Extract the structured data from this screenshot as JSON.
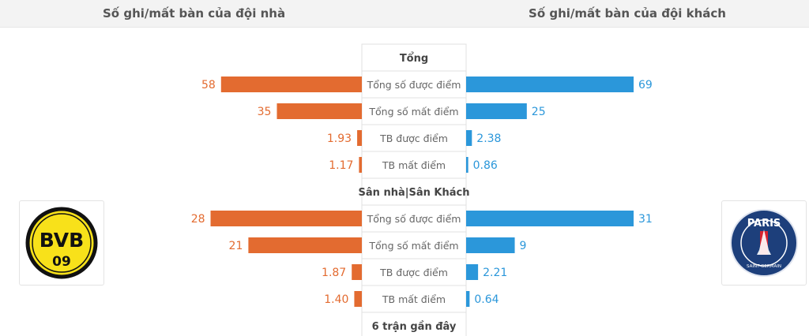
{
  "header": {
    "home_title": "Số ghi/mất bàn của đội nhà",
    "away_title": "Số ghi/mất bàn của đội khách"
  },
  "colors": {
    "home": "#e36b30",
    "away": "#2b97da",
    "label": "#555555"
  },
  "teams": {
    "home": {
      "logo": "bvb-crest-icon",
      "logo_text": "BVB",
      "logo_number": "09"
    },
    "away": {
      "logo": "psg-crest-icon",
      "logo_text": "PARIS",
      "logo_subtext": "SAINT-GERMAIN"
    }
  },
  "chart_data": {
    "type": "bar",
    "orientation": "horizontal-diverging",
    "series": [
      {
        "side": "home",
        "color": "#e36b30"
      },
      {
        "side": "away",
        "color": "#2b97da"
      }
    ],
    "sections": [
      {
        "title": "Tổng",
        "rows": [
          {
            "label": "Tổng số được điểm",
            "home": 58,
            "away": 69,
            "home_label": "58",
            "away_label": "69"
          },
          {
            "label": "Tổng số mất điểm",
            "home": 35,
            "away": 25,
            "home_label": "35",
            "away_label": "25"
          },
          {
            "label": "TB được điểm",
            "home": 1.93,
            "away": 2.38,
            "home_label": "1.93",
            "away_label": "2.38"
          },
          {
            "label": "TB mất điểm",
            "home": 1.17,
            "away": 0.86,
            "home_label": "1.17",
            "away_label": "0.86"
          }
        ]
      },
      {
        "title": "Sân nhà|Sân Khách",
        "rows": [
          {
            "label": "Tổng số được điểm",
            "home": 28,
            "away": 31,
            "home_label": "28",
            "away_label": "31"
          },
          {
            "label": "Tổng số mất điểm",
            "home": 21,
            "away": 9,
            "home_label": "21",
            "away_label": "9"
          },
          {
            "label": "TB được điểm",
            "home": 1.87,
            "away": 2.21,
            "home_label": "1.87",
            "away_label": "2.21"
          },
          {
            "label": "TB mất điểm",
            "home": 1.4,
            "away": 0.64,
            "home_label": "1.40",
            "away_label": "0.64"
          }
        ]
      },
      {
        "title": "6 trận gần đây",
        "rows": []
      }
    ]
  }
}
